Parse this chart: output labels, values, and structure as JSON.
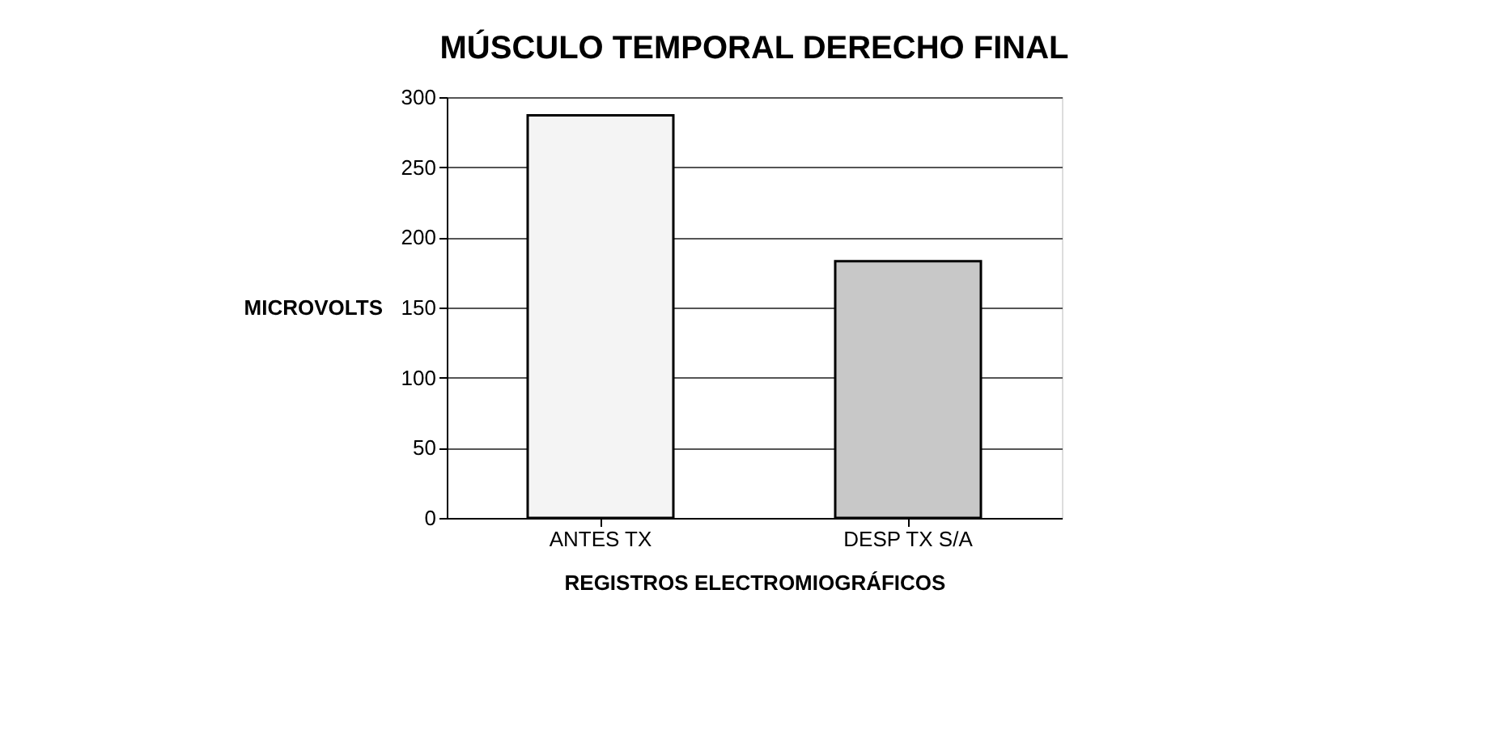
{
  "chart_data": {
    "type": "bar",
    "title": "MÚSCULO TEMPORAL DERECHO FINAL",
    "xlabel": "REGISTROS   ELECTROMIOGRÁFICOS",
    "ylabel": "MICROVOLTS",
    "categories": [
      "ANTES TX",
      "DESP TX S/A"
    ],
    "values": [
      287,
      183
    ],
    "colors": [
      "#f4f4f4",
      "#c8c8c8"
    ],
    "ylim": [
      0,
      300
    ],
    "yticks": [
      0,
      50,
      100,
      150,
      200,
      250,
      300
    ],
    "grid": "y"
  }
}
